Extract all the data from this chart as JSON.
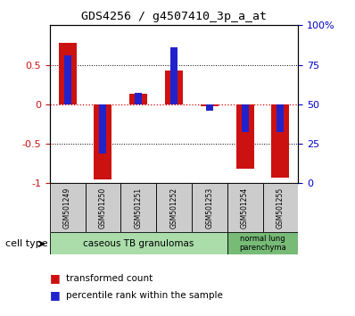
{
  "title": "GDS4256 / g4507410_3p_a_at",
  "samples": [
    "GSM501249",
    "GSM501250",
    "GSM501251",
    "GSM501252",
    "GSM501253",
    "GSM501254",
    "GSM501255"
  ],
  "red_values": [
    0.78,
    -0.95,
    0.13,
    0.43,
    -0.03,
    -0.82,
    -0.93
  ],
  "blue_values_norm": [
    0.62,
    -0.62,
    0.15,
    0.72,
    -0.08,
    -0.35,
    -0.35
  ],
  "ylim": [
    -1.0,
    1.0
  ],
  "yticks_left": [
    -1.0,
    -0.5,
    0.0,
    0.5
  ],
  "ytick_labels_left": [
    "-1",
    "-0.5",
    "0",
    "0.5"
  ],
  "yticks_right_vals": [
    -1.0,
    -0.5,
    0.0,
    0.5,
    1.0
  ],
  "ytick_labels_right": [
    "0",
    "25",
    "50",
    "75",
    "100%"
  ],
  "cell_type_label": "cell type",
  "ct1_label": "caseous TB granulomas",
  "ct1_color": "#aaddaa",
  "ct2_label": "normal lung\nparenchyma",
  "ct2_color": "#77bb77",
  "legend_red": "transformed count",
  "legend_blue": "percentile rank within the sample",
  "bar_width": 0.5,
  "blue_bar_width": 0.2,
  "red_color": "#cc1111",
  "blue_color": "#2222cc",
  "bg_color": "#ffffff",
  "grid_color": "#000000",
  "zero_line_color": "#dd0000",
  "tick_color_left": "#cc1111",
  "tick_color_right": "#0000cc",
  "sample_box_color": "#cccccc"
}
